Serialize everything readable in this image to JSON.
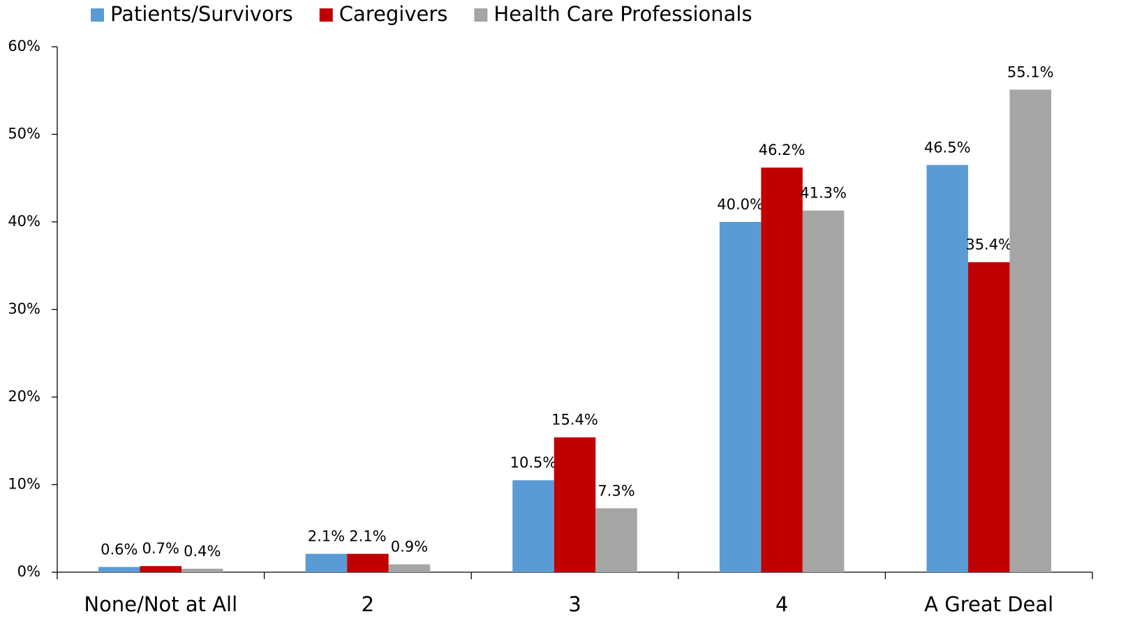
{
  "chart_data": {
    "type": "bar",
    "categories": [
      "None/Not at All",
      "2",
      "3",
      "4",
      "A Great Deal"
    ],
    "series": [
      {
        "name": "Patients/Survivors",
        "color": "#5b9bd5",
        "values": [
          0.6,
          2.1,
          10.5,
          40.0,
          46.5
        ],
        "value_labels": [
          "0.6%",
          "2.1%",
          "10.5%",
          "40.0%",
          "46.5%"
        ]
      },
      {
        "name": "Caregivers",
        "color": "#c00000",
        "values": [
          0.7,
          2.1,
          15.4,
          46.2,
          35.4
        ],
        "value_labels": [
          "0.7%",
          "2.1%",
          "15.4%",
          "46.2%",
          "35.4%"
        ]
      },
      {
        "name": "Health Care Professionals",
        "color": "#a5a5a5",
        "values": [
          0.4,
          0.9,
          7.3,
          41.3,
          55.1
        ],
        "value_labels": [
          "0.4%",
          "0.9%",
          "7.3%",
          "41.3%",
          "55.1%"
        ]
      }
    ],
    "ylim": [
      0,
      60
    ],
    "yticks": [
      {
        "value": 0,
        "label": "0%"
      },
      {
        "value": 10,
        "label": "10%"
      },
      {
        "value": 20,
        "label": "20%"
      },
      {
        "value": 30,
        "label": "30%"
      },
      {
        "value": 40,
        "label": "40%"
      },
      {
        "value": 50,
        "label": "50%"
      },
      {
        "value": 60,
        "label": "60%"
      }
    ],
    "grid": false,
    "legend": "top"
  }
}
